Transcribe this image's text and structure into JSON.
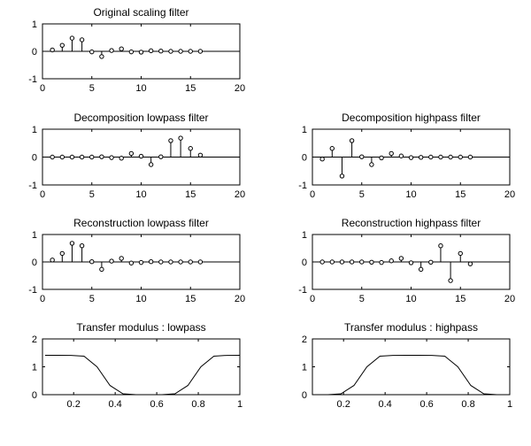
{
  "chart_data": [
    {
      "type": "stem",
      "title": "Original scaling filter",
      "xlim": [
        0,
        20
      ],
      "ylim": [
        -1,
        1
      ],
      "xticks": [
        0,
        5,
        10,
        15,
        20
      ],
      "yticks": [
        -1,
        0,
        1
      ],
      "x": [
        1,
        2,
        3,
        4,
        5,
        6,
        7,
        8,
        9,
        10,
        11,
        12,
        13,
        14,
        15,
        16
      ],
      "values": [
        0.05,
        0.22,
        0.48,
        0.42,
        -0.02,
        -0.19,
        0.03,
        0.09,
        -0.02,
        -0.03,
        0.02,
        0.01,
        0.0,
        0.0,
        0.0,
        0.0
      ]
    },
    {
      "type": "stem",
      "title": "Decomposition lowpass filter",
      "xlim": [
        0,
        20
      ],
      "ylim": [
        -1,
        1
      ],
      "xticks": [
        0,
        5,
        10,
        15,
        20
      ],
      "yticks": [
        -1,
        0,
        1
      ],
      "x": [
        1,
        2,
        3,
        4,
        5,
        6,
        7,
        8,
        9,
        10,
        11,
        12,
        13,
        14,
        15,
        16
      ],
      "values": [
        0.0,
        0.0,
        0.0,
        0.0,
        0.0,
        0.01,
        -0.02,
        -0.04,
        0.13,
        0.03,
        -0.27,
        0.01,
        0.59,
        0.68,
        0.31,
        0.07
      ]
    },
    {
      "type": "stem",
      "title": "Decomposition highpass filter",
      "xlim": [
        0,
        20
      ],
      "ylim": [
        -1,
        1
      ],
      "xticks": [
        0,
        5,
        10,
        15,
        20
      ],
      "yticks": [
        -1,
        0,
        1
      ],
      "x": [
        1,
        2,
        3,
        4,
        5,
        6,
        7,
        8,
        9,
        10,
        11,
        12,
        13,
        14,
        15,
        16
      ],
      "values": [
        -0.07,
        0.31,
        -0.68,
        0.59,
        0.01,
        -0.27,
        -0.03,
        0.13,
        0.04,
        -0.02,
        -0.01,
        0.0,
        0.0,
        0.0,
        0.0,
        0.0
      ]
    },
    {
      "type": "stem",
      "title": "Reconstruction lowpass filter",
      "xlim": [
        0,
        20
      ],
      "ylim": [
        -1,
        1
      ],
      "xticks": [
        0,
        5,
        10,
        15,
        20
      ],
      "yticks": [
        -1,
        0,
        1
      ],
      "x": [
        1,
        2,
        3,
        4,
        5,
        6,
        7,
        8,
        9,
        10,
        11,
        12,
        13,
        14,
        15,
        16
      ],
      "values": [
        0.07,
        0.31,
        0.68,
        0.59,
        0.01,
        -0.27,
        0.03,
        0.13,
        -0.04,
        -0.02,
        0.01,
        0.0,
        0.0,
        0.0,
        0.0,
        0.0
      ]
    },
    {
      "type": "stem",
      "title": "Reconstruction highpass filter",
      "xlim": [
        0,
        20
      ],
      "ylim": [
        -1,
        1
      ],
      "xticks": [
        0,
        5,
        10,
        15,
        20
      ],
      "yticks": [
        -1,
        0,
        1
      ],
      "x": [
        1,
        2,
        3,
        4,
        5,
        6,
        7,
        8,
        9,
        10,
        11,
        12,
        13,
        14,
        15,
        16
      ],
      "values": [
        0.0,
        0.0,
        0.0,
        0.0,
        0.0,
        -0.01,
        -0.02,
        0.04,
        0.13,
        -0.03,
        -0.27,
        -0.01,
        0.59,
        -0.68,
        0.31,
        -0.07
      ]
    },
    {
      "type": "line",
      "title": "Transfer modulus : lowpass",
      "xlim": [
        0.05,
        1.0
      ],
      "ylim": [
        0,
        2
      ],
      "xticks": [
        0.2,
        0.4,
        0.6,
        0.8,
        1
      ],
      "yticks": [
        0,
        1,
        2
      ],
      "x": [
        0.0625,
        0.125,
        0.1875,
        0.25,
        0.3125,
        0.375,
        0.4375,
        0.5,
        0.5625,
        0.625,
        0.6875,
        0.75,
        0.8125,
        0.875,
        0.9375,
        1.0
      ],
      "values": [
        1.414,
        1.414,
        1.41,
        1.38,
        1.0,
        0.33,
        0.03,
        0.0,
        0.0,
        0.0,
        0.03,
        0.33,
        1.0,
        1.38,
        1.41,
        1.414
      ]
    },
    {
      "type": "line",
      "title": "Transfer modulus : highpass",
      "xlim": [
        0.05,
        1.0
      ],
      "ylim": [
        0,
        2
      ],
      "xticks": [
        0.2,
        0.4,
        0.6,
        0.8,
        1
      ],
      "yticks": [
        0,
        1,
        2
      ],
      "x": [
        0.0625,
        0.125,
        0.1875,
        0.25,
        0.3125,
        0.375,
        0.4375,
        0.5,
        0.5625,
        0.625,
        0.6875,
        0.75,
        0.8125,
        0.875,
        0.9375,
        1.0
      ],
      "values": [
        0.0,
        0.0,
        0.03,
        0.33,
        1.0,
        1.38,
        1.41,
        1.414,
        1.414,
        1.41,
        1.38,
        1.0,
        0.33,
        0.03,
        0.0,
        0.0
      ]
    }
  ]
}
